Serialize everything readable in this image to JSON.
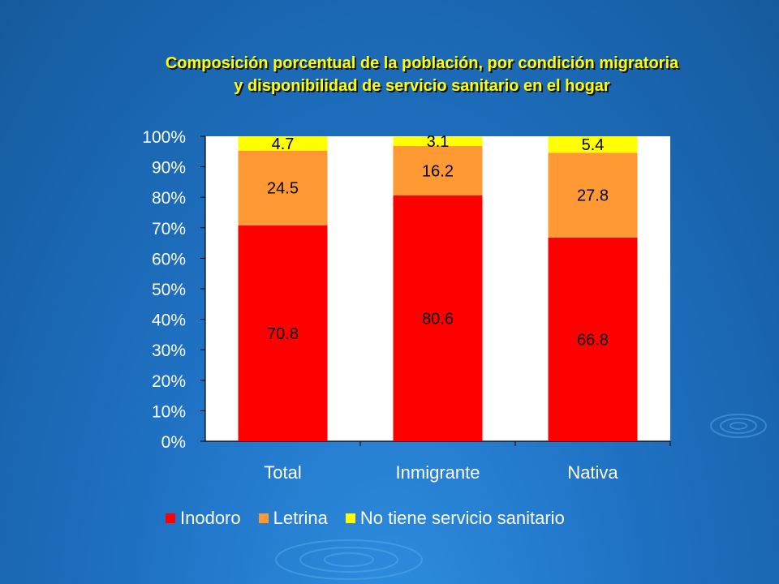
{
  "chart_data": {
    "type": "bar",
    "stacked": true,
    "title_line1": "Composición porcentual de la población, por condición migratoria",
    "title_line2": "y disponibilidad de servicio sanitario en el hogar",
    "categories": [
      "Total",
      "Inmigrante",
      "Nativa"
    ],
    "series": [
      {
        "name": "Inodoro",
        "color": "#ff0000",
        "values": [
          70.8,
          80.6,
          66.8
        ]
      },
      {
        "name": "Letrina",
        "color": "#ff9933",
        "values": [
          24.5,
          16.2,
          27.8
        ]
      },
      {
        "name": "No tiene servicio sanitario",
        "color": "#ffff00",
        "values": [
          4.7,
          3.1,
          5.4
        ]
      }
    ],
    "yticks": [
      "0%",
      "10%",
      "20%",
      "30%",
      "40%",
      "50%",
      "60%",
      "70%",
      "80%",
      "90%",
      "100%"
    ],
    "ylim": [
      0,
      100
    ],
    "legend_position": "bottom"
  }
}
